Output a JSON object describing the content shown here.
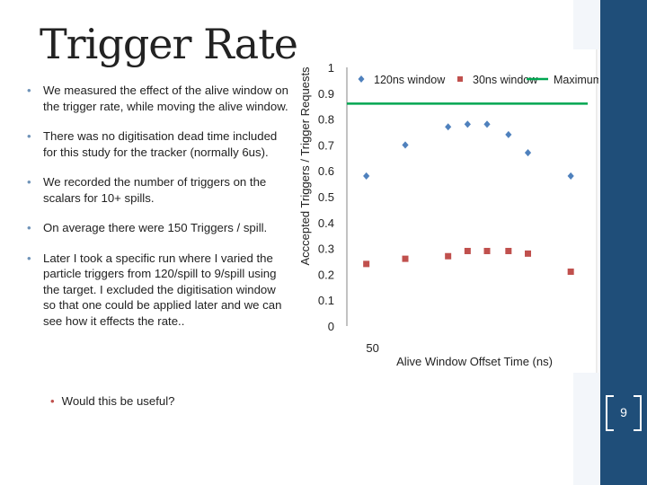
{
  "slide": {
    "title": "Trigger Rate",
    "bullets": [
      "We measured the effect of the alive window on the trigger rate, while moving the alive window.",
      "There was no digitisation dead time included for this study for the tracker (normally 6us).",
      "We recorded the number of triggers on the scalars for 10+ spills.",
      "On average there were 150 Triggers / spill.",
      "Later I took a specific run where I varied the particle triggers from 120/spill to 9/spill using the target. I excluded the digitisation window so that one could be applied later and we can see how it effects the rate.."
    ],
    "sub_bullet": "Would this be useful?",
    "page_number": "9"
  },
  "colors": {
    "series_120": "#4f81bd",
    "series_30": "#c0504d",
    "maximum": "#00a651",
    "sidebar": "#1f4e79"
  },
  "chart_data": {
    "type": "scatter",
    "xlabel": "Alive Window Offset Time (ns)",
    "ylabel": "Acccepted Triggers / Trigger Requests",
    "ylim": [
      0,
      1
    ],
    "yticks": [
      "0",
      "0.1",
      "0.2",
      "0.3",
      "0.4",
      "0.5",
      "0.6",
      "0.7",
      "0.8",
      "0.9",
      "1"
    ],
    "xticks": [
      "50"
    ],
    "xlim": [
      49.9,
      51.1
    ],
    "grid": false,
    "legend_position": "top",
    "series": [
      {
        "name": "120ns window",
        "marker": "diamond",
        "x": [
          50.0,
          50.2,
          50.42,
          50.52,
          50.62,
          50.73,
          50.83,
          51.05
        ],
        "y": [
          0.58,
          0.7,
          0.77,
          0.78,
          0.78,
          0.74,
          0.67,
          0.58
        ]
      },
      {
        "name": "30ns window",
        "marker": "square",
        "x": [
          50.0,
          50.2,
          50.42,
          50.52,
          50.62,
          50.73,
          50.83,
          51.05
        ],
        "y": [
          0.24,
          0.26,
          0.27,
          0.29,
          0.29,
          0.29,
          0.28,
          0.21
        ]
      },
      {
        "name": "Maximum",
        "marker": "line",
        "y_constant": 0.86
      }
    ]
  }
}
